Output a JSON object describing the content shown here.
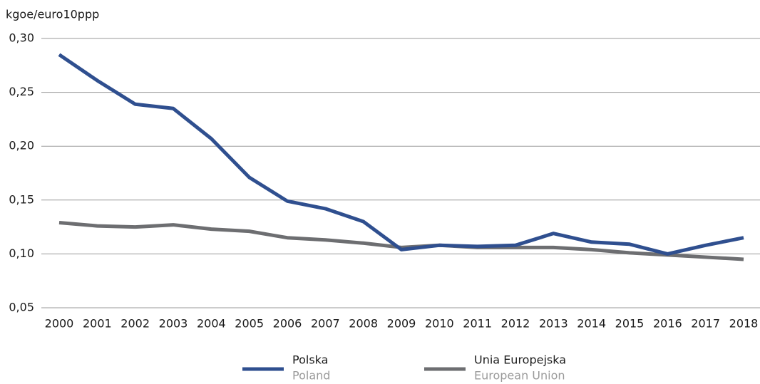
{
  "chart_data": {
    "type": "line",
    "y_axis_label": "kgoe/euro10ppp",
    "categories": [
      "2000",
      "2001",
      "2002",
      "2003",
      "2004",
      "2005",
      "2006",
      "2007",
      "2008",
      "2009",
      "2010",
      "2011",
      "2012",
      "2013",
      "2014",
      "2015",
      "2016",
      "2017",
      "2018"
    ],
    "series": [
      {
        "name": "Polska",
        "sublabel": "Poland",
        "color": "#2f4f8f",
        "values": [
          0.285,
          0.261,
          0.239,
          0.235,
          0.207,
          0.171,
          0.149,
          0.142,
          0.13,
          0.104,
          0.108,
          0.107,
          0.108,
          0.119,
          0.111,
          0.109,
          0.1,
          0.108,
          0.115
        ]
      },
      {
        "name": "Unia Europejska",
        "sublabel": "European Union",
        "color": "#6d6e71",
        "values": [
          0.129,
          0.126,
          0.125,
          0.127,
          0.123,
          0.121,
          0.115,
          0.113,
          0.11,
          0.106,
          0.108,
          0.106,
          0.106,
          0.106,
          0.104,
          0.101,
          0.099,
          0.097,
          0.095
        ]
      }
    ],
    "ylim": [
      0.05,
      0.3
    ],
    "yticks": [
      {
        "value": 0.05,
        "label": "0,05"
      },
      {
        "value": 0.1,
        "label": "0,10"
      },
      {
        "value": 0.15,
        "label": "0,15"
      },
      {
        "value": 0.2,
        "label": "0,20"
      },
      {
        "value": 0.25,
        "label": "0,25"
      },
      {
        "value": 0.3,
        "label": "0,30"
      }
    ],
    "grid": true
  }
}
